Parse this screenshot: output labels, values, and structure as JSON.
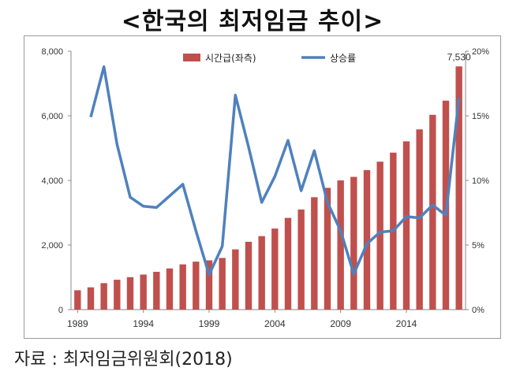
{
  "title": "<한국의 최저임금 추이>",
  "source": "자료 : 최저임금위원회(2018)",
  "chart_data": {
    "type": "bar+line",
    "x": [
      1989,
      1990,
      1991,
      1992,
      1993,
      1994,
      1995,
      1996,
      1997,
      1998,
      1999,
      2000,
      2001,
      2002,
      2003,
      2004,
      2005,
      2006,
      2007,
      2008,
      2009,
      2010,
      2011,
      2012,
      2013,
      2014,
      2015,
      2016,
      2017,
      2018
    ],
    "x_ticks": [
      1989,
      1994,
      1999,
      2004,
      2009,
      2014
    ],
    "series": [
      {
        "name": "시간급(좌측)",
        "kind": "bar",
        "axis": "left",
        "color": "#c0504d",
        "values": [
          600,
          690,
          820,
          925,
          1005,
          1085,
          1170,
          1275,
          1400,
          1485,
          1525,
          1600,
          1865,
          2100,
          2275,
          2510,
          2840,
          3100,
          3480,
          3770,
          4000,
          4110,
          4320,
          4580,
          4860,
          5210,
          5580,
          6030,
          6470,
          7530
        ]
      },
      {
        "name": "상승률",
        "kind": "line",
        "axis": "right",
        "color": "#4f81bd",
        "values": [
          null,
          14.9,
          18.8,
          12.8,
          8.7,
          8.0,
          7.9,
          8.8,
          9.7,
          6.1,
          2.7,
          4.9,
          16.6,
          12.6,
          8.3,
          10.3,
          13.1,
          9.2,
          12.3,
          8.3,
          6.1,
          2.75,
          5.1,
          6.0,
          6.1,
          7.2,
          7.1,
          8.1,
          7.3,
          16.4
        ]
      }
    ],
    "y_left": {
      "min": 0,
      "max": 8000,
      "ticks": [
        "0",
        "2,000",
        "4,000",
        "6,000",
        "8,000"
      ]
    },
    "y_right": {
      "min": 0,
      "max": 20,
      "ticks": [
        "0%",
        "5%",
        "10%",
        "15%",
        "20%"
      ]
    },
    "legend_position": "top-center",
    "annotation": {
      "x": 2018,
      "text": "7,530"
    }
  }
}
